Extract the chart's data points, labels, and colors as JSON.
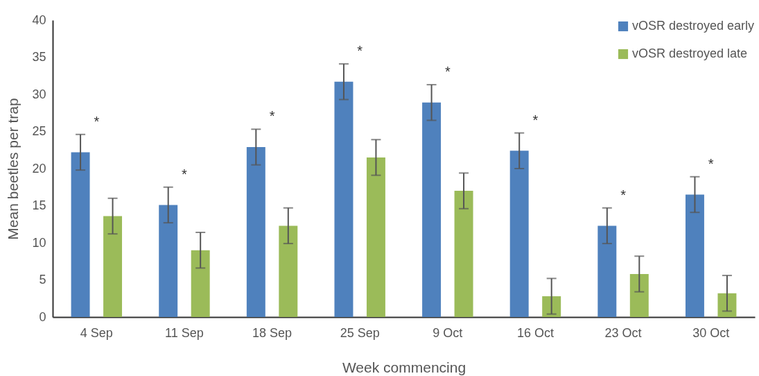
{
  "chart_data": {
    "type": "bar",
    "xlabel": "Week commencing",
    "ylabel": "Mean beetles per trap",
    "categories": [
      "4 Sep",
      "11 Sep",
      "18 Sep",
      "25 Sep",
      "9 Oct",
      "16 Oct",
      "23 Oct",
      "30 Oct"
    ],
    "series": [
      {
        "name": "vOSR destroyed early",
        "color": "#4f81bd",
        "values": [
          22.2,
          15.1,
          22.9,
          31.7,
          28.9,
          22.4,
          12.3,
          16.5
        ],
        "errors": [
          2.4,
          2.4,
          2.4,
          2.4,
          2.4,
          2.4,
          2.4,
          2.4
        ]
      },
      {
        "name": "vOSR destroyed late",
        "color": "#9bbb59",
        "values": [
          13.6,
          9.0,
          12.3,
          21.5,
          17.0,
          2.8,
          5.8,
          3.2
        ],
        "errors": [
          2.4,
          2.4,
          2.4,
          2.4,
          2.4,
          2.4,
          2.4,
          2.4
        ]
      }
    ],
    "ylim": [
      0,
      40
    ],
    "yticks": [
      0,
      5,
      10,
      15,
      20,
      25,
      30,
      35,
      40
    ],
    "grid": false,
    "legend": "top right",
    "annotations": [
      "*",
      "*",
      "*",
      "*",
      "*",
      "*",
      "*",
      "*"
    ]
  }
}
